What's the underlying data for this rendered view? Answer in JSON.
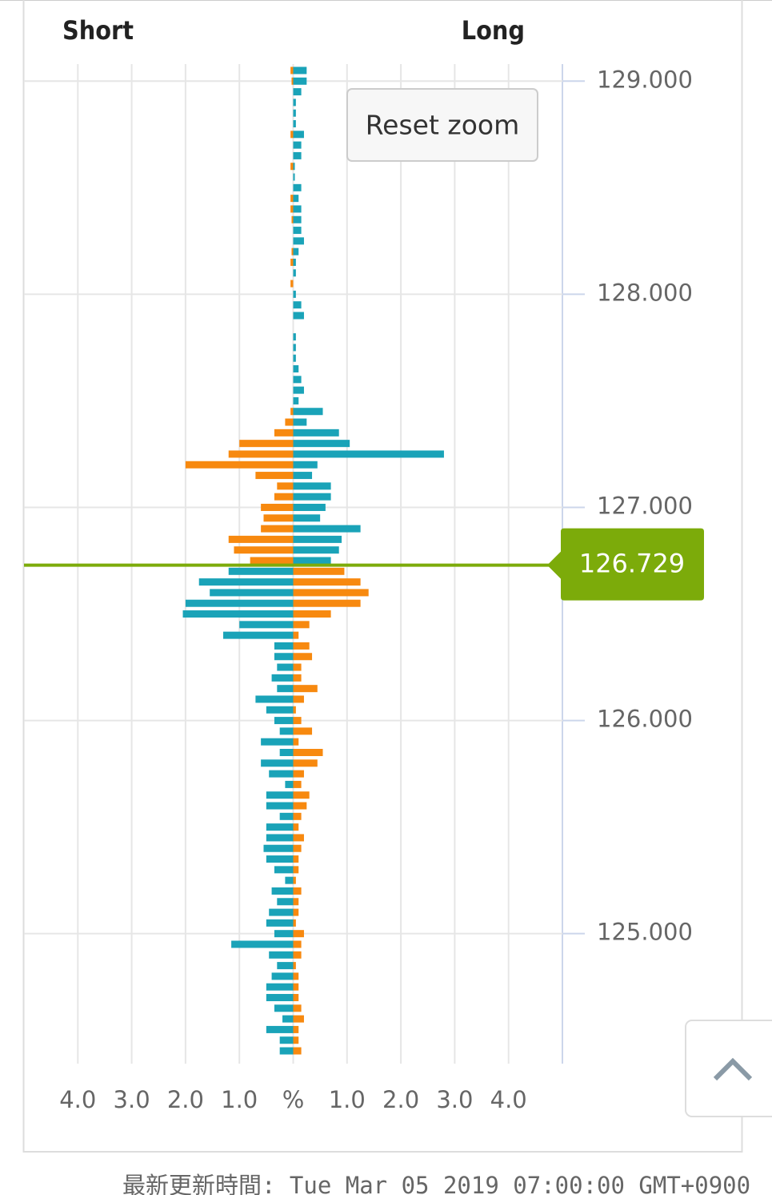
{
  "chart_data": {
    "type": "position-book",
    "short_label": "Short",
    "long_label": "Long",
    "reset_button": "Reset zoom",
    "footer": "最新更新時間: Tue Mar 05 2019 07:00:00 GMT+0900",
    "current_price": 126.729,
    "current_price_color": "#7cab0a",
    "profit_color": "#f7890f",
    "loss_color": "#1aa3b8",
    "y": [
      129.05,
      129,
      128.95,
      128.9,
      128.85,
      128.8,
      128.75,
      128.7,
      128.65,
      128.6,
      128.55,
      128.5,
      128.45,
      128.4,
      128.35,
      128.3,
      128.25,
      128.2,
      128.15,
      128.1,
      128.05,
      128,
      127.95,
      127.9,
      127.85,
      127.8,
      127.75,
      127.7,
      127.65,
      127.6,
      127.55,
      127.5,
      127.45,
      127.4,
      127.35,
      127.3,
      127.25,
      127.2,
      127.15,
      127.1,
      127.05,
      127,
      126.95,
      126.9,
      126.85,
      126.8,
      126.75,
      126.7,
      126.65,
      126.6,
      126.55,
      126.5,
      126.45,
      126.4,
      126.35,
      126.3,
      126.25,
      126.2,
      126.15,
      126.1,
      126.05,
      126,
      125.95,
      125.9,
      125.85,
      125.8,
      125.75,
      125.7,
      125.65,
      125.6,
      125.55,
      125.5,
      125.45,
      125.4,
      125.35,
      125.3,
      125.25,
      125.2,
      125.15,
      125.1,
      125.05,
      125,
      124.95,
      124.9,
      124.85,
      124.8,
      124.75,
      124.7,
      124.65,
      124.6,
      124.55,
      124.5,
      124.45
    ],
    "series": [
      {
        "side": "short",
        "values": [
          0.05,
          0.03,
          0,
          0,
          0,
          0,
          0.05,
          0,
          0,
          0.05,
          0,
          0,
          0.05,
          0.05,
          0.03,
          0,
          0,
          0.03,
          0.05,
          0,
          0.05,
          0,
          0,
          0,
          0,
          0,
          0,
          0,
          0,
          0,
          0,
          0,
          0.05,
          0.15,
          0.35,
          1.0,
          1.2,
          2.0,
          0.7,
          0.3,
          0.35,
          0.6,
          0.55,
          0.6,
          1.2,
          1.1,
          0.8,
          1.2,
          1.75,
          1.55,
          2.0,
          2.05,
          1.0,
          1.3,
          0.35,
          0.35,
          0.3,
          0.4,
          0.3,
          0.7,
          0.5,
          0.35,
          0.25,
          0.6,
          0.25,
          0.6,
          0.45,
          0.15,
          0.5,
          0.5,
          0.25,
          0.5,
          0.5,
          0.55,
          0.5,
          0.35,
          0.15,
          0.4,
          0.3,
          0.45,
          0.5,
          0.35,
          1.15,
          0.45,
          0.3,
          0.4,
          0.5,
          0.5,
          0.35,
          0.2,
          0.5,
          0.25,
          0.25
        ]
      },
      {
        "side": "long",
        "values": [
          0.25,
          0.25,
          0.15,
          0.05,
          0.05,
          0.05,
          0.2,
          0.15,
          0.15,
          0.03,
          0.03,
          0.15,
          0.1,
          0.15,
          0.15,
          0.15,
          0.2,
          0.1,
          0.05,
          0.05,
          0,
          0.05,
          0.15,
          0.2,
          0,
          0.05,
          0.05,
          0.05,
          0.1,
          0.15,
          0.2,
          0.1,
          0.55,
          0.25,
          0.85,
          1.05,
          2.8,
          0.45,
          0.35,
          0.7,
          0.7,
          0.6,
          0.5,
          1.25,
          0.9,
          0.85,
          0.7,
          0.95,
          1.25,
          1.4,
          1.25,
          0.7,
          0.3,
          0.1,
          0.3,
          0.35,
          0.15,
          0.15,
          0.45,
          0.2,
          0.05,
          0.15,
          0.35,
          0.1,
          0.55,
          0.45,
          0.2,
          0.15,
          0.3,
          0.25,
          0.15,
          0.1,
          0.2,
          0.15,
          0.1,
          0.1,
          0.05,
          0.15,
          0.1,
          0.1,
          0.05,
          0.2,
          0.15,
          0.15,
          0.05,
          0.1,
          0.1,
          0.1,
          0.15,
          0.2,
          0.1,
          0.1,
          0.15
        ]
      }
    ],
    "xlim": [
      -5,
      5
    ],
    "xticks": [
      {
        "value": -4,
        "label": "4.0"
      },
      {
        "value": -3,
        "label": "3.0"
      },
      {
        "value": -2,
        "label": "2.0"
      },
      {
        "value": -1,
        "label": "1.0"
      },
      {
        "value": 0,
        "label": "%"
      },
      {
        "value": 1,
        "label": "1.0"
      },
      {
        "value": 2,
        "label": "2.0"
      },
      {
        "value": 3,
        "label": "3.0"
      },
      {
        "value": 4,
        "label": "4.0"
      }
    ],
    "ylim": [
      124.39,
      129.08
    ],
    "yticks": [
      {
        "value": 129,
        "label": "129.000"
      },
      {
        "value": 128,
        "label": "128.000"
      },
      {
        "value": 127,
        "label": "127.000"
      },
      {
        "value": 126,
        "label": "126.000"
      },
      {
        "value": 125,
        "label": "125.000"
      }
    ],
    "grid": true
  }
}
